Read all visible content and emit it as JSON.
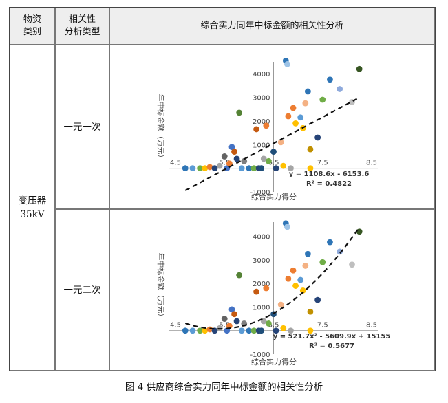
{
  "table": {
    "headers": {
      "col1_line1": "物资",
      "col1_line2": "类别",
      "col2_line1": "相关性",
      "col2_line2": "分析类型",
      "col3": "综合实力同年中标金额的相关性分析"
    },
    "category_line1": "变压器",
    "category_line2": "35kV",
    "row1_type": "一元一次",
    "row2_type": "一元二次"
  },
  "caption": "图 4  供应商综合实力同年中标金额的相关性分析",
  "chart_data": [
    {
      "type": "scatter",
      "fit": "linear",
      "xlabel": "综合实力得分",
      "ylabel": "年中标金额（万元）",
      "x_ticks": [
        "4.5",
        "5.5",
        "6.5",
        "7.5",
        "8.5"
      ],
      "y_ticks": [
        "-1000",
        "1000",
        "2000",
        "3000",
        "4000"
      ],
      "xlim": [
        4.5,
        8.5
      ],
      "ylim": [
        -1000,
        4500
      ],
      "equation": "y = 1108.6x - 6153.6",
      "r2": "R² = 0.4822",
      "trend_coef": [
        -6153.6,
        1108.6
      ],
      "trend_range": [
        4.7,
        8.2
      ],
      "points": [
        {
          "x": 4.7,
          "y": 0,
          "c": "#2e75b6"
        },
        {
          "x": 4.85,
          "y": 0,
          "c": "#5b9bd5"
        },
        {
          "x": 5.0,
          "y": 0,
          "c": "#70ad47"
        },
        {
          "x": 5.1,
          "y": 0,
          "c": "#ffc000"
        },
        {
          "x": 5.2,
          "y": 50,
          "c": "#ed7d31"
        },
        {
          "x": 5.3,
          "y": 0,
          "c": "#264478"
        },
        {
          "x": 5.4,
          "y": 100,
          "c": "#a5a5a5"
        },
        {
          "x": 5.5,
          "y": 500,
          "c": "#636363"
        },
        {
          "x": 5.55,
          "y": 0,
          "c": "#4472c4"
        },
        {
          "x": 5.6,
          "y": 200,
          "c": "#ed7d31"
        },
        {
          "x": 5.65,
          "y": 900,
          "c": "#4472c4"
        },
        {
          "x": 5.7,
          "y": 700,
          "c": "#c55a11"
        },
        {
          "x": 5.75,
          "y": 400,
          "c": "#264478"
        },
        {
          "x": 5.8,
          "y": 2350,
          "c": "#548235"
        },
        {
          "x": 5.85,
          "y": 0,
          "c": "#5b9bd5"
        },
        {
          "x": 5.9,
          "y": 300,
          "c": "#7f7f7f"
        },
        {
          "x": 6.0,
          "y": 0,
          "c": "#2e75b6"
        },
        {
          "x": 6.1,
          "y": 0,
          "c": "#70ad47"
        },
        {
          "x": 6.15,
          "y": 1650,
          "c": "#c55a11"
        },
        {
          "x": 6.2,
          "y": 0,
          "c": "#264478"
        },
        {
          "x": 6.25,
          "y": 0,
          "c": "#1f4e79"
        },
        {
          "x": 6.3,
          "y": 400,
          "c": "#a5a5a5"
        },
        {
          "x": 6.35,
          "y": 1800,
          "c": "#ed7d31"
        },
        {
          "x": 6.4,
          "y": 300,
          "c": "#70ad47"
        },
        {
          "x": 6.5,
          "y": 700,
          "c": "#1f4e79"
        },
        {
          "x": 6.55,
          "y": 0,
          "c": "#264478"
        },
        {
          "x": 6.65,
          "y": 1100,
          "c": "#f4b183"
        },
        {
          "x": 6.7,
          "y": 100,
          "c": "#ffc000"
        },
        {
          "x": 6.75,
          "y": 4550,
          "c": "#2e75b6"
        },
        {
          "x": 6.78,
          "y": 4400,
          "c": "#9dc3e6"
        },
        {
          "x": 6.8,
          "y": 2200,
          "c": "#ed7d31"
        },
        {
          "x": 6.85,
          "y": 0,
          "c": "#a5a5a5"
        },
        {
          "x": 6.9,
          "y": 2550,
          "c": "#ed7d31"
        },
        {
          "x": 6.95,
          "y": 1900,
          "c": "#ffc000"
        },
        {
          "x": 7.05,
          "y": 2150,
          "c": "#5b9bd5"
        },
        {
          "x": 7.1,
          "y": 1700,
          "c": "#ffc000"
        },
        {
          "x": 7.15,
          "y": 2750,
          "c": "#f4b183"
        },
        {
          "x": 7.2,
          "y": 3250,
          "c": "#2e75b6"
        },
        {
          "x": 7.25,
          "y": 800,
          "c": "#c09000"
        },
        {
          "x": 7.25,
          "y": 0,
          "c": "#ffc000"
        },
        {
          "x": 7.4,
          "y": 1300,
          "c": "#264478"
        },
        {
          "x": 7.5,
          "y": 2900,
          "c": "#70ad47"
        },
        {
          "x": 7.65,
          "y": 3750,
          "c": "#2e75b6"
        },
        {
          "x": 7.85,
          "y": 3350,
          "c": "#8faadc"
        },
        {
          "x": 8.1,
          "y": 2800,
          "c": "#bfbfbf"
        },
        {
          "x": 8.25,
          "y": 4200,
          "c": "#375623"
        }
      ]
    },
    {
      "type": "scatter",
      "fit": "quadratic",
      "xlabel": "综合实力得分",
      "ylabel": "年中标金额（万元）",
      "x_ticks": [
        "4.5",
        "5.5",
        "6.5",
        "7.5",
        "8.5"
      ],
      "y_ticks": [
        "-1000",
        "1000",
        "2000",
        "3000",
        "4000"
      ],
      "xlim": [
        4.5,
        8.5
      ],
      "ylim": [
        -1000,
        4600
      ],
      "equation": "y = 521.7x² - 5609.9x + 15155",
      "r2": "R² = 0.5677",
      "trend_coef": [
        15155,
        -5609.9,
        521.7
      ],
      "trend_range": [
        4.7,
        8.25
      ],
      "points": [
        {
          "x": 4.7,
          "y": 0,
          "c": "#2e75b6"
        },
        {
          "x": 4.85,
          "y": 0,
          "c": "#5b9bd5"
        },
        {
          "x": 5.0,
          "y": 0,
          "c": "#70ad47"
        },
        {
          "x": 5.1,
          "y": 0,
          "c": "#ffc000"
        },
        {
          "x": 5.2,
          "y": 50,
          "c": "#ed7d31"
        },
        {
          "x": 5.3,
          "y": 0,
          "c": "#264478"
        },
        {
          "x": 5.4,
          "y": 100,
          "c": "#a5a5a5"
        },
        {
          "x": 5.5,
          "y": 500,
          "c": "#636363"
        },
        {
          "x": 5.55,
          "y": 0,
          "c": "#4472c4"
        },
        {
          "x": 5.6,
          "y": 200,
          "c": "#ed7d31"
        },
        {
          "x": 5.65,
          "y": 900,
          "c": "#4472c4"
        },
        {
          "x": 5.7,
          "y": 700,
          "c": "#c55a11"
        },
        {
          "x": 5.75,
          "y": 400,
          "c": "#264478"
        },
        {
          "x": 5.8,
          "y": 2350,
          "c": "#548235"
        },
        {
          "x": 5.85,
          "y": 0,
          "c": "#5b9bd5"
        },
        {
          "x": 5.9,
          "y": 300,
          "c": "#7f7f7f"
        },
        {
          "x": 6.0,
          "y": 0,
          "c": "#2e75b6"
        },
        {
          "x": 6.1,
          "y": 0,
          "c": "#70ad47"
        },
        {
          "x": 6.15,
          "y": 1650,
          "c": "#c55a11"
        },
        {
          "x": 6.2,
          "y": 0,
          "c": "#264478"
        },
        {
          "x": 6.25,
          "y": 0,
          "c": "#1f4e79"
        },
        {
          "x": 6.3,
          "y": 400,
          "c": "#a5a5a5"
        },
        {
          "x": 6.35,
          "y": 1800,
          "c": "#ed7d31"
        },
        {
          "x": 6.4,
          "y": 300,
          "c": "#70ad47"
        },
        {
          "x": 6.5,
          "y": 700,
          "c": "#1f4e79"
        },
        {
          "x": 6.55,
          "y": 0,
          "c": "#264478"
        },
        {
          "x": 6.65,
          "y": 1100,
          "c": "#f4b183"
        },
        {
          "x": 6.7,
          "y": 100,
          "c": "#ffc000"
        },
        {
          "x": 6.75,
          "y": 4550,
          "c": "#2e75b6"
        },
        {
          "x": 6.78,
          "y": 4400,
          "c": "#9dc3e6"
        },
        {
          "x": 6.8,
          "y": 2200,
          "c": "#ed7d31"
        },
        {
          "x": 6.85,
          "y": 0,
          "c": "#a5a5a5"
        },
        {
          "x": 6.9,
          "y": 2550,
          "c": "#ed7d31"
        },
        {
          "x": 6.95,
          "y": 1900,
          "c": "#ffc000"
        },
        {
          "x": 7.05,
          "y": 2150,
          "c": "#5b9bd5"
        },
        {
          "x": 7.1,
          "y": 1700,
          "c": "#ffc000"
        },
        {
          "x": 7.15,
          "y": 2750,
          "c": "#f4b183"
        },
        {
          "x": 7.2,
          "y": 3250,
          "c": "#2e75b6"
        },
        {
          "x": 7.25,
          "y": 800,
          "c": "#c09000"
        },
        {
          "x": 7.25,
          "y": 0,
          "c": "#ffc000"
        },
        {
          "x": 7.4,
          "y": 1300,
          "c": "#264478"
        },
        {
          "x": 7.5,
          "y": 2900,
          "c": "#70ad47"
        },
        {
          "x": 7.65,
          "y": 3750,
          "c": "#2e75b6"
        },
        {
          "x": 7.85,
          "y": 3350,
          "c": "#8faadc"
        },
        {
          "x": 8.1,
          "y": 2800,
          "c": "#bfbfbf"
        },
        {
          "x": 8.25,
          "y": 4200,
          "c": "#375623"
        }
      ]
    }
  ]
}
